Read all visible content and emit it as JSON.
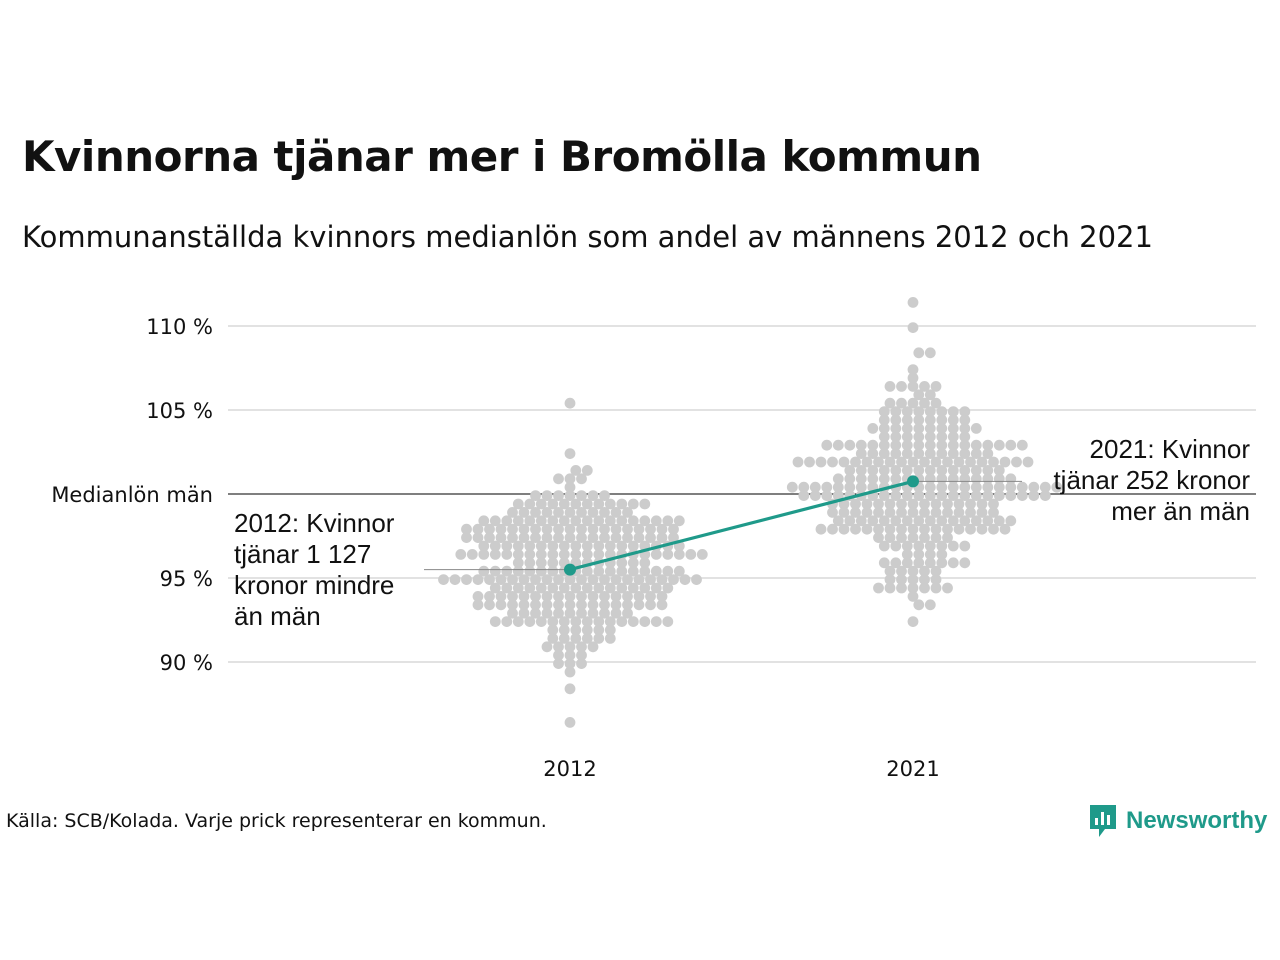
{
  "title": "Kvinnorna tjänar mer i Bromölla kommun",
  "subtitle": "Kommunanställda kvinnors medianlön som andel av männens 2012 och 2021",
  "source": "Källa: SCB/Kolada. Varje prick representerar en kommun.",
  "logo": {
    "name": "Newsworthy",
    "color": "#1f9a8a"
  },
  "chart_data": {
    "type": "scatter",
    "subtype": "beeswarm",
    "title": "Kvinnorna tjänar mer i Bromölla kommun",
    "subtitle": "Kommunanställda kvinnors medianlön som andel av männens 2012 och 2021",
    "xlabel": "",
    "ylabel": "",
    "categories": [
      "2012",
      "2021"
    ],
    "ylim": [
      86,
      112
    ],
    "y_ticks": [
      {
        "value": 90,
        "label": "90 %"
      },
      {
        "value": 95,
        "label": "95 %"
      },
      {
        "value": 100,
        "label": "Medianlön män"
      },
      {
        "value": 105,
        "label": "105 %"
      },
      {
        "value": 110,
        "label": "110 %"
      }
    ],
    "grid": true,
    "reference_line": {
      "value": 100,
      "label": "Medianlön män"
    },
    "colors": {
      "dots": "#cccccc",
      "highlight": "#1f9a8a",
      "grid": "#e2e2e2",
      "reference": "#333333"
    },
    "highlight": {
      "name": "Bromölla",
      "points": [
        {
          "x": "2012",
          "y": 95.5
        },
        {
          "x": "2021",
          "y": 100.75
        }
      ]
    },
    "distributions": [
      {
        "x": "2012",
        "median": 95.6,
        "spread": 2.7,
        "min": 86.6,
        "max": 105.2,
        "count": 290
      },
      {
        "x": "2021",
        "median": 100.6,
        "spread": 2.9,
        "min": 92.6,
        "max": 111.3,
        "count": 290
      }
    ],
    "annotations": [
      {
        "x": "2012",
        "lines": [
          "2012: Kvinnor",
          "tjänar 1 127",
          "kronor mindre",
          "än män"
        ]
      },
      {
        "x": "2021",
        "lines": [
          "2021: Kvinnor",
          "tjänar 252 kronor",
          "mer än män"
        ]
      }
    ]
  }
}
